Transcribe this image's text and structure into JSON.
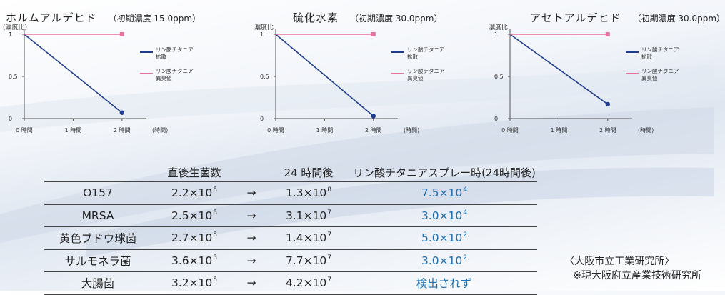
{
  "colors": {
    "diffusion": "#1f3d8c",
    "threshold": "#e8739a",
    "blue_text": "#1e6fb0"
  },
  "chart_data": [
    {
      "type": "line",
      "title": "ホルムアルデヒド",
      "subtitle": "（初期濃度 15.0ppm）",
      "ylabel": "(濃度比)",
      "xlabel": "(時間)",
      "xticks": [
        "0 時間",
        "1 時間",
        "2 時間"
      ],
      "yticks": [
        "0",
        "0.5",
        "1"
      ],
      "xlim": [
        0,
        2.5
      ],
      "ylim": [
        0,
        1
      ],
      "legend": "right",
      "series": [
        {
          "name": "リン酸チタニア 拡散",
          "x": [
            0,
            2
          ],
          "y": [
            1,
            0.07
          ],
          "color": "diffusion",
          "endpoint": true
        },
        {
          "name": "リン酸チタニア 異臭値",
          "x": [
            0,
            2
          ],
          "y": [
            1,
            1
          ],
          "color": "threshold",
          "endpoint": true
        }
      ]
    },
    {
      "type": "line",
      "title": "硫化水素",
      "subtitle": "（初期濃度 30.0ppm）",
      "ylabel": "濃度比",
      "xlabel": "(時間)",
      "xticks": [
        "0 時間",
        "1 時間",
        "2 時間"
      ],
      "yticks": [
        "0",
        "0.5",
        "1"
      ],
      "xlim": [
        0,
        2.5
      ],
      "ylim": [
        0,
        1
      ],
      "legend": "right",
      "series": [
        {
          "name": "リン酸チタニア 拡散",
          "x": [
            0,
            2
          ],
          "y": [
            1,
            0.03
          ],
          "color": "diffusion",
          "endpoint": true
        },
        {
          "name": "リン酸チタニア 異臭値",
          "x": [
            0,
            2
          ],
          "y": [
            1,
            1
          ],
          "color": "threshold",
          "endpoint": true
        }
      ]
    },
    {
      "type": "line",
      "title": "アセトアルデヒド",
      "subtitle": "（初期濃度 30.0ppm）",
      "ylabel": "濃度比",
      "xlabel": "(時間)",
      "xticks": [
        "0 時間",
        "1 時間",
        "2 時間"
      ],
      "yticks": [
        "0",
        "0.5",
        "1"
      ],
      "xlim": [
        0,
        2.5
      ],
      "ylim": [
        0,
        1
      ],
      "legend": "right",
      "series": [
        {
          "name": "リン酸チタニア 拡散",
          "x": [
            0,
            2
          ],
          "y": [
            1,
            0.17
          ],
          "color": "diffusion",
          "endpoint": true
        },
        {
          "name": "リン酸チタニア 異臭値",
          "x": [
            0,
            2
          ],
          "y": [
            1,
            1
          ],
          "color": "threshold",
          "endpoint": true
        }
      ]
    }
  ],
  "table": {
    "headers": [
      "直後生菌数",
      "24 時間後",
      "リン酸チタニアスプレー時(24時間後)"
    ],
    "arrow": "→",
    "rows": [
      {
        "name": "O157",
        "initial": [
          "2.2×10",
          "5"
        ],
        "after": [
          "1.3×10",
          "8"
        ],
        "spray": [
          "7.5×10",
          "4"
        ]
      },
      {
        "name": "MRSA",
        "initial": [
          "2.5×10",
          "5"
        ],
        "after": [
          "3.1×10",
          "7"
        ],
        "spray": [
          "3.0×10",
          "4"
        ]
      },
      {
        "name": "黄色ブドウ球菌",
        "initial": [
          "2.7×10",
          "5"
        ],
        "after": [
          "1.4×10",
          "7"
        ],
        "spray": [
          "5.0×10",
          "2"
        ]
      },
      {
        "name": "サルモネラ菌",
        "initial": [
          "3.6×10",
          "5"
        ],
        "after": [
          "7.7×10",
          "7"
        ],
        "spray": [
          "3.0×10",
          "2"
        ]
      },
      {
        "name": "大腸菌",
        "initial": [
          "3.2×10",
          "5"
        ],
        "after": [
          "4.2×10",
          "7"
        ],
        "spray": [
          "検出されず",
          ""
        ]
      }
    ]
  },
  "source": {
    "line1": "〈大阪市立工業研究所〉",
    "line2": "※現大阪府立産業技術研究所"
  }
}
